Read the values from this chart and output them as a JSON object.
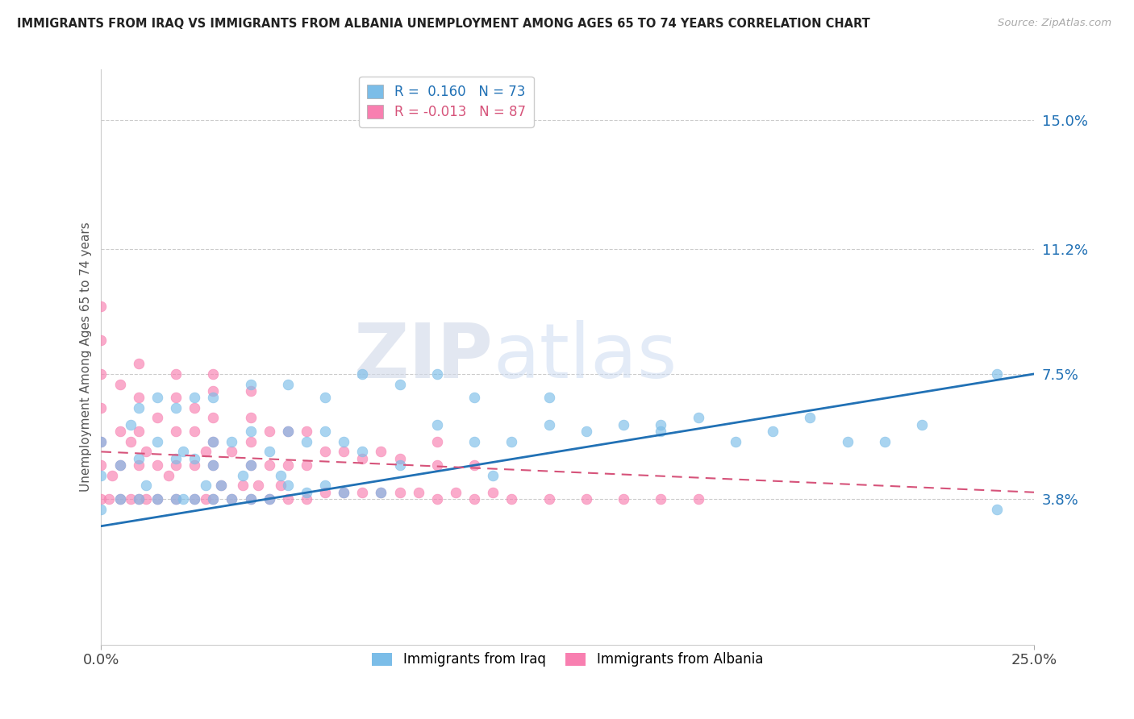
{
  "title": "IMMIGRANTS FROM IRAQ VS IMMIGRANTS FROM ALBANIA UNEMPLOYMENT AMONG AGES 65 TO 74 YEARS CORRELATION CHART",
  "source": "Source: ZipAtlas.com",
  "ylabel": "Unemployment Among Ages 65 to 74 years",
  "yticks_labels": [
    "15.0%",
    "11.2%",
    "7.5%",
    "3.8%"
  ],
  "ytick_vals": [
    0.15,
    0.112,
    0.075,
    0.038
  ],
  "xlim": [
    0.0,
    0.25
  ],
  "ylim": [
    -0.005,
    0.165
  ],
  "legend_iraq_R": " 0.160",
  "legend_iraq_N": "73",
  "legend_albania_R": "-0.013",
  "legend_albania_N": "87",
  "iraq_color": "#7bbde8",
  "albania_color": "#f87fb0",
  "iraq_trend_color": "#2171b5",
  "albania_trend_color": "#d6537a",
  "watermark_zip": "ZIP",
  "watermark_atlas": "atlas",
  "iraq_x": [
    0.0,
    0.0,
    0.0,
    0.005,
    0.005,
    0.008,
    0.01,
    0.01,
    0.01,
    0.012,
    0.015,
    0.015,
    0.015,
    0.02,
    0.02,
    0.02,
    0.022,
    0.022,
    0.025,
    0.025,
    0.025,
    0.028,
    0.03,
    0.03,
    0.03,
    0.03,
    0.032,
    0.035,
    0.035,
    0.038,
    0.04,
    0.04,
    0.04,
    0.04,
    0.045,
    0.045,
    0.048,
    0.05,
    0.05,
    0.055,
    0.055,
    0.06,
    0.06,
    0.065,
    0.065,
    0.07,
    0.075,
    0.08,
    0.09,
    0.09,
    0.1,
    0.105,
    0.11,
    0.12,
    0.13,
    0.14,
    0.15,
    0.16,
    0.18,
    0.19,
    0.21,
    0.22,
    0.24,
    0.05,
    0.06,
    0.07,
    0.08,
    0.1,
    0.12,
    0.15,
    0.17,
    0.2,
    0.24
  ],
  "iraq_y": [
    0.035,
    0.045,
    0.055,
    0.038,
    0.048,
    0.06,
    0.038,
    0.05,
    0.065,
    0.042,
    0.038,
    0.055,
    0.068,
    0.038,
    0.05,
    0.065,
    0.038,
    0.052,
    0.038,
    0.05,
    0.068,
    0.042,
    0.038,
    0.048,
    0.055,
    0.068,
    0.042,
    0.038,
    0.055,
    0.045,
    0.038,
    0.048,
    0.058,
    0.072,
    0.038,
    0.052,
    0.045,
    0.042,
    0.058,
    0.04,
    0.055,
    0.042,
    0.058,
    0.04,
    0.055,
    0.052,
    0.04,
    0.048,
    0.06,
    0.075,
    0.055,
    0.045,
    0.055,
    0.06,
    0.058,
    0.06,
    0.058,
    0.062,
    0.058,
    0.062,
    0.055,
    0.06,
    0.035,
    0.072,
    0.068,
    0.075,
    0.072,
    0.068,
    0.068,
    0.06,
    0.055,
    0.055,
    0.075
  ],
  "albania_x": [
    0.0,
    0.0,
    0.0,
    0.0,
    0.0,
    0.0,
    0.0,
    0.002,
    0.003,
    0.005,
    0.005,
    0.005,
    0.005,
    0.008,
    0.008,
    0.01,
    0.01,
    0.01,
    0.01,
    0.01,
    0.012,
    0.012,
    0.015,
    0.015,
    0.015,
    0.018,
    0.02,
    0.02,
    0.02,
    0.02,
    0.02,
    0.025,
    0.025,
    0.025,
    0.025,
    0.028,
    0.028,
    0.03,
    0.03,
    0.03,
    0.03,
    0.03,
    0.03,
    0.032,
    0.035,
    0.035,
    0.038,
    0.04,
    0.04,
    0.04,
    0.04,
    0.04,
    0.042,
    0.045,
    0.045,
    0.045,
    0.048,
    0.05,
    0.05,
    0.05,
    0.055,
    0.055,
    0.055,
    0.06,
    0.06,
    0.065,
    0.065,
    0.07,
    0.07,
    0.075,
    0.075,
    0.08,
    0.08,
    0.085,
    0.09,
    0.09,
    0.09,
    0.095,
    0.1,
    0.1,
    0.105,
    0.11,
    0.12,
    0.13,
    0.14,
    0.15,
    0.16
  ],
  "albania_y": [
    0.038,
    0.048,
    0.055,
    0.065,
    0.075,
    0.085,
    0.095,
    0.038,
    0.045,
    0.038,
    0.048,
    0.058,
    0.072,
    0.038,
    0.055,
    0.038,
    0.048,
    0.058,
    0.068,
    0.078,
    0.038,
    0.052,
    0.038,
    0.048,
    0.062,
    0.045,
    0.038,
    0.048,
    0.058,
    0.068,
    0.075,
    0.038,
    0.048,
    0.058,
    0.065,
    0.038,
    0.052,
    0.038,
    0.048,
    0.055,
    0.062,
    0.07,
    0.075,
    0.042,
    0.038,
    0.052,
    0.042,
    0.038,
    0.048,
    0.055,
    0.062,
    0.07,
    0.042,
    0.038,
    0.048,
    0.058,
    0.042,
    0.038,
    0.048,
    0.058,
    0.038,
    0.048,
    0.058,
    0.04,
    0.052,
    0.04,
    0.052,
    0.04,
    0.05,
    0.04,
    0.052,
    0.04,
    0.05,
    0.04,
    0.038,
    0.048,
    0.055,
    0.04,
    0.038,
    0.048,
    0.04,
    0.038,
    0.038,
    0.038,
    0.038,
    0.038,
    0.038
  ],
  "iraq_trend_x": [
    0.0,
    0.25
  ],
  "iraq_trend_y": [
    0.03,
    0.075
  ],
  "albania_trend_x": [
    0.0,
    0.25
  ],
  "albania_trend_y": [
    0.052,
    0.04
  ]
}
